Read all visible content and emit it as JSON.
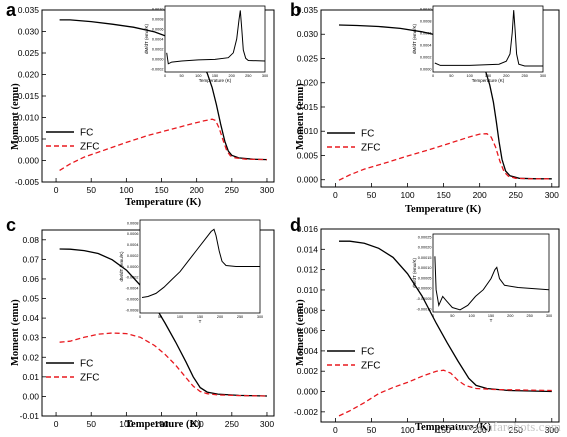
{
  "watermark": "www.nfarobots.com",
  "colors": {
    "fc": "#000000",
    "zfc": "#e8191f",
    "inset": "#000000"
  },
  "chart_data": [
    {
      "panel": "a",
      "type": "line",
      "xlabel": "Temperature (K)",
      "ylabel": "Moment (emu)",
      "xlim": [
        -20,
        310
      ],
      "ylim": [
        -0.005,
        0.035
      ],
      "xticks": [
        0,
        50,
        100,
        150,
        200,
        250,
        300
      ],
      "yticks": [
        -0.005,
        0.0,
        0.005,
        0.01,
        0.015,
        0.02,
        0.025,
        0.03,
        0.035
      ],
      "ytick_labels": [
        "-0.005",
        "0.000",
        "0.005",
        "0.010",
        "0.015",
        "0.020",
        "0.025",
        "0.030",
        "0.035"
      ],
      "legend": "center-left",
      "series": [
        {
          "name": "FC",
          "style": "solid",
          "points": [
            [
              5,
              0.0327
            ],
            [
              20,
              0.0327
            ],
            [
              50,
              0.0323
            ],
            [
              80,
              0.0317
            ],
            [
              110,
              0.031
            ],
            [
              140,
              0.0299
            ],
            [
              170,
              0.0281
            ],
            [
              190,
              0.026
            ],
            [
              205,
              0.0233
            ],
            [
              215,
              0.0203
            ],
            [
              222,
              0.017
            ],
            [
              228,
              0.013
            ],
            [
              234,
              0.0085
            ],
            [
              240,
              0.0045
            ],
            [
              245,
              0.0022
            ],
            [
              250,
              0.0012
            ],
            [
              260,
              0.0006
            ],
            [
              280,
              0.0003
            ],
            [
              300,
              0.0002
            ]
          ]
        },
        {
          "name": "ZFC",
          "style": "dashed",
          "points": [
            [
              5,
              -0.0023
            ],
            [
              20,
              -0.0008
            ],
            [
              40,
              0.0008
            ],
            [
              70,
              0.0025
            ],
            [
              100,
              0.0042
            ],
            [
              130,
              0.0058
            ],
            [
              160,
              0.0071
            ],
            [
              190,
              0.0084
            ],
            [
              210,
              0.0092
            ],
            [
              222,
              0.0096
            ],
            [
              227,
              0.0093
            ],
            [
              232,
              0.0075
            ],
            [
              238,
              0.0045
            ],
            [
              243,
              0.0022
            ],
            [
              248,
              0.0011
            ],
            [
              255,
              0.0006
            ],
            [
              270,
              0.0003
            ],
            [
              300,
              0.0002
            ]
          ]
        }
      ],
      "inset": {
        "ylabel": "dM/dT (emu/K)",
        "xlabel": "Temperature (K)",
        "xticks": [
          "0",
          "50",
          "100",
          "150",
          "200",
          "250",
          "300"
        ],
        "yticks": [
          "0.0010",
          "0.0008",
          "0.0006",
          "0.0004",
          "0.0002",
          "0.0000",
          "-0.0002"
        ],
        "xlim": [
          0,
          300
        ],
        "ylim": [
          -0.0002,
          0.001
        ],
        "points": [
          [
            5,
            0.00015
          ],
          [
            10,
            -5e-05
          ],
          [
            20,
            -2e-05
          ],
          [
            50,
            0.0
          ],
          [
            100,
            2e-05
          ],
          [
            150,
            3e-05
          ],
          [
            190,
            6e-05
          ],
          [
            205,
            0.00015
          ],
          [
            215,
            0.0004
          ],
          [
            222,
            0.00075
          ],
          [
            226,
            0.00092
          ],
          [
            230,
            0.0006
          ],
          [
            235,
            0.0002
          ],
          [
            242,
            5e-05
          ],
          [
            250,
            1e-05
          ],
          [
            300,
            0.0
          ]
        ]
      }
    },
    {
      "panel": "b",
      "type": "line",
      "xlabel": "Temperature (K)",
      "ylabel": "Moment (emu)",
      "xlim": [
        -20,
        310
      ],
      "ylim": [
        -0.0015,
        0.035
      ],
      "xticks": [
        0,
        50,
        100,
        150,
        200,
        250,
        300
      ],
      "yticks": [
        0.0,
        0.005,
        0.01,
        0.015,
        0.02,
        0.025,
        0.03,
        0.035
      ],
      "ytick_labels": [
        "0.000",
        "0.005",
        "0.010",
        "0.015",
        "0.020",
        "0.025",
        "0.030",
        "0.035"
      ],
      "legend": "center-left",
      "series": [
        {
          "name": "FC",
          "style": "solid",
          "points": [
            [
              5,
              0.0319
            ],
            [
              30,
              0.0318
            ],
            [
              60,
              0.0316
            ],
            [
              90,
              0.0312
            ],
            [
              120,
              0.0305
            ],
            [
              150,
              0.0295
            ],
            [
              175,
              0.0281
            ],
            [
              190,
              0.0266
            ],
            [
              200,
              0.0248
            ],
            [
              208,
              0.0225
            ],
            [
              214,
              0.0195
            ],
            [
              219,
              0.016
            ],
            [
              223,
              0.012
            ],
            [
              227,
              0.0078
            ],
            [
              231,
              0.0042
            ],
            [
              236,
              0.0018
            ],
            [
              242,
              0.0008
            ],
            [
              255,
              0.0003
            ],
            [
              280,
              0.0002
            ],
            [
              300,
              0.0002
            ]
          ]
        },
        {
          "name": "ZFC",
          "style": "dashed",
          "points": [
            [
              5,
              -0.0001
            ],
            [
              20,
              0.001
            ],
            [
              40,
              0.0022
            ],
            [
              70,
              0.0035
            ],
            [
              100,
              0.0049
            ],
            [
              130,
              0.0062
            ],
            [
              160,
              0.0076
            ],
            [
              185,
              0.0088
            ],
            [
              200,
              0.0094
            ],
            [
              210,
              0.0095
            ],
            [
              216,
              0.0088
            ],
            [
              222,
              0.0068
            ],
            [
              228,
              0.0038
            ],
            [
              234,
              0.0016
            ],
            [
              240,
              0.0007
            ],
            [
              250,
              0.0003
            ],
            [
              270,
              0.0002
            ],
            [
              300,
              0.0002
            ]
          ]
        }
      ],
      "inset": {
        "ylabel": "dM/dT (emu/K)",
        "xlabel": "Temperature (K)",
        "xticks": [
          "0",
          "50",
          "100",
          "150",
          "200",
          "250",
          "300"
        ],
        "yticks": [
          "0.0010",
          "0.0008",
          "0.0006",
          "0.0004",
          "0.0002",
          "0.0000"
        ],
        "xlim": [
          0,
          300
        ],
        "ylim": [
          -0.0001,
          0.001
        ],
        "points": [
          [
            5,
            5e-05
          ],
          [
            20,
            1e-05
          ],
          [
            100,
            1e-05
          ],
          [
            180,
            3e-05
          ],
          [
            200,
            8e-05
          ],
          [
            210,
            0.0002
          ],
          [
            216,
            0.00055
          ],
          [
            220,
            0.00093
          ],
          [
            224,
            0.0006
          ],
          [
            228,
            0.0002
          ],
          [
            234,
            3e-05
          ],
          [
            250,
            0.0
          ],
          [
            300,
            0.0
          ]
        ]
      }
    },
    {
      "panel": "c",
      "type": "line",
      "xlabel": "Temperature (K)",
      "ylabel": "Moment (emu)",
      "xlim": [
        -20,
        310
      ],
      "ylim": [
        -0.01,
        0.085
      ],
      "xticks": [
        0,
        50,
        100,
        150,
        200,
        250,
        300
      ],
      "yticks": [
        -0.01,
        0.0,
        0.01,
        0.02,
        0.03,
        0.04,
        0.05,
        0.06,
        0.07,
        0.08
      ],
      "ytick_labels": [
        "-0.01",
        "0.00",
        "0.01",
        "0.02",
        "0.03",
        "0.04",
        "0.05",
        "0.06",
        "0.07",
        "0.08"
      ],
      "legend": "bottom-left",
      "series": [
        {
          "name": "FC",
          "style": "solid",
          "points": [
            [
              5,
              0.0753
            ],
            [
              20,
              0.0752
            ],
            [
              40,
              0.0745
            ],
            [
              60,
              0.073
            ],
            [
              80,
              0.0698
            ],
            [
              100,
              0.0645
            ],
            [
              120,
              0.0567
            ],
            [
              140,
              0.0465
            ],
            [
              155,
              0.0375
            ],
            [
              170,
              0.0278
            ],
            [
              185,
              0.0175
            ],
            [
              195,
              0.01
            ],
            [
              205,
              0.0045
            ],
            [
              215,
              0.0022
            ],
            [
              230,
              0.0012
            ],
            [
              260,
              0.0005
            ],
            [
              300,
              0.0002
            ]
          ]
        },
        {
          "name": "ZFC",
          "style": "dashed",
          "points": [
            [
              5,
              0.0277
            ],
            [
              20,
              0.0282
            ],
            [
              40,
              0.0302
            ],
            [
              60,
              0.0318
            ],
            [
              80,
              0.0324
            ],
            [
              100,
              0.0321
            ],
            [
              120,
              0.0302
            ],
            [
              140,
              0.026
            ],
            [
              155,
              0.0215
            ],
            [
              170,
              0.016
            ],
            [
              185,
              0.0095
            ],
            [
              195,
              0.0052
            ],
            [
              205,
              0.0025
            ],
            [
              215,
              0.0014
            ],
            [
              230,
              0.0008
            ],
            [
              260,
              0.0004
            ],
            [
              300,
              0.0002
            ]
          ]
        }
      ],
      "inset": {
        "ylabel": "dM/dT (emu/K)",
        "xlabel": "T",
        "xticks": [
          "0",
          "50",
          "100",
          "150",
          "200",
          "250",
          "300"
        ],
        "yticks": [
          "0.0008",
          "0.0006",
          "0.0004",
          "0.0002",
          "0.0000",
          "-0.0002",
          "-0.0004",
          "-0.0006",
          "-0.0008"
        ],
        "xlim": [
          0,
          300
        ],
        "ylim": [
          -0.0009,
          0.0009
        ],
        "points": [
          [
            5,
            -0.0006
          ],
          [
            20,
            -0.00058
          ],
          [
            40,
            -0.00052
          ],
          [
            60,
            -0.0004
          ],
          [
            80,
            -0.00025
          ],
          [
            100,
            -0.0001
          ],
          [
            120,
            0.0001
          ],
          [
            140,
            0.0003
          ],
          [
            160,
            0.0005
          ],
          [
            178,
            0.00068
          ],
          [
            185,
            0.00072
          ],
          [
            190,
            0.0006
          ],
          [
            198,
            0.0003
          ],
          [
            205,
            0.0001
          ],
          [
            215,
            2e-05
          ],
          [
            240,
            0.0
          ],
          [
            300,
            0.0
          ]
        ]
      }
    },
    {
      "panel": "d",
      "type": "line",
      "xlabel": "Temperature (K)",
      "ylabel": "Moment (emu)",
      "xlim": [
        -20,
        310
      ],
      "ylim": [
        -0.003,
        0.016
      ],
      "xticks": [
        0,
        50,
        100,
        150,
        200,
        250,
        300
      ],
      "yticks": [
        -0.002,
        0.0,
        0.002,
        0.004,
        0.006,
        0.008,
        0.01,
        0.012,
        0.014,
        0.016
      ],
      "ytick_labels": [
        "-0.002",
        "0.000",
        "0.002",
        "0.004",
        "0.006",
        "0.008",
        "0.010",
        "0.012",
        "0.014",
        "0.016"
      ],
      "legend": "bottom-left",
      "series": [
        {
          "name": "FC",
          "style": "solid",
          "points": [
            [
              5,
              0.0148
            ],
            [
              20,
              0.0148
            ],
            [
              40,
              0.0146
            ],
            [
              60,
              0.0141
            ],
            [
              80,
              0.0132
            ],
            [
              100,
              0.0116
            ],
            [
              120,
              0.0094
            ],
            [
              140,
              0.0067
            ],
            [
              155,
              0.0048
            ],
            [
              170,
              0.003
            ],
            [
              185,
              0.0013
            ],
            [
              195,
              0.0006
            ],
            [
              210,
              0.0003
            ],
            [
              240,
              0.0001
            ],
            [
              300,
              0.0
            ]
          ]
        },
        {
          "name": "ZFC",
          "style": "dashed",
          "points": [
            [
              5,
              -0.0024
            ],
            [
              20,
              -0.0019
            ],
            [
              40,
              -0.0011
            ],
            [
              60,
              -0.0002
            ],
            [
              80,
              0.0004
            ],
            [
              100,
              0.0009
            ],
            [
              120,
              0.0015
            ],
            [
              140,
              0.002
            ],
            [
              150,
              0.0021
            ],
            [
              160,
              0.0018
            ],
            [
              170,
              0.0011
            ],
            [
              180,
              0.0006
            ],
            [
              195,
              0.0003
            ],
            [
              220,
              0.0002
            ],
            [
              300,
              0.0001
            ]
          ]
        }
      ],
      "inset": {
        "ylabel": "dM/dT (emu/K)",
        "xlabel": "T",
        "xticks": [
          "0",
          "50",
          "100",
          "150",
          "200",
          "250",
          "300"
        ],
        "yticks": [
          "0.00025",
          "0.00020",
          "0.00015",
          "0.00010",
          "0.00005",
          "0.00000",
          "-0.00005",
          "-0.00010"
        ],
        "xlim": [
          0,
          300
        ],
        "ylim": [
          -0.0001,
          0.00025
        ],
        "points": [
          [
            5,
            0.00015
          ],
          [
            8,
            0.0
          ],
          [
            15,
            -7e-05
          ],
          [
            25,
            -3e-05
          ],
          [
            35,
            -5e-05
          ],
          [
            50,
            -8e-05
          ],
          [
            70,
            -9e-05
          ],
          [
            90,
            -7e-05
          ],
          [
            110,
            -3e-05
          ],
          [
            130,
            0.0
          ],
          [
            150,
            5e-05
          ],
          [
            160,
            9e-05
          ],
          [
            165,
            0.0001
          ],
          [
            172,
            5e-05
          ],
          [
            185,
            2e-05
          ],
          [
            220,
            1e-05
          ],
          [
            300,
            0.0
          ]
        ]
      }
    }
  ]
}
